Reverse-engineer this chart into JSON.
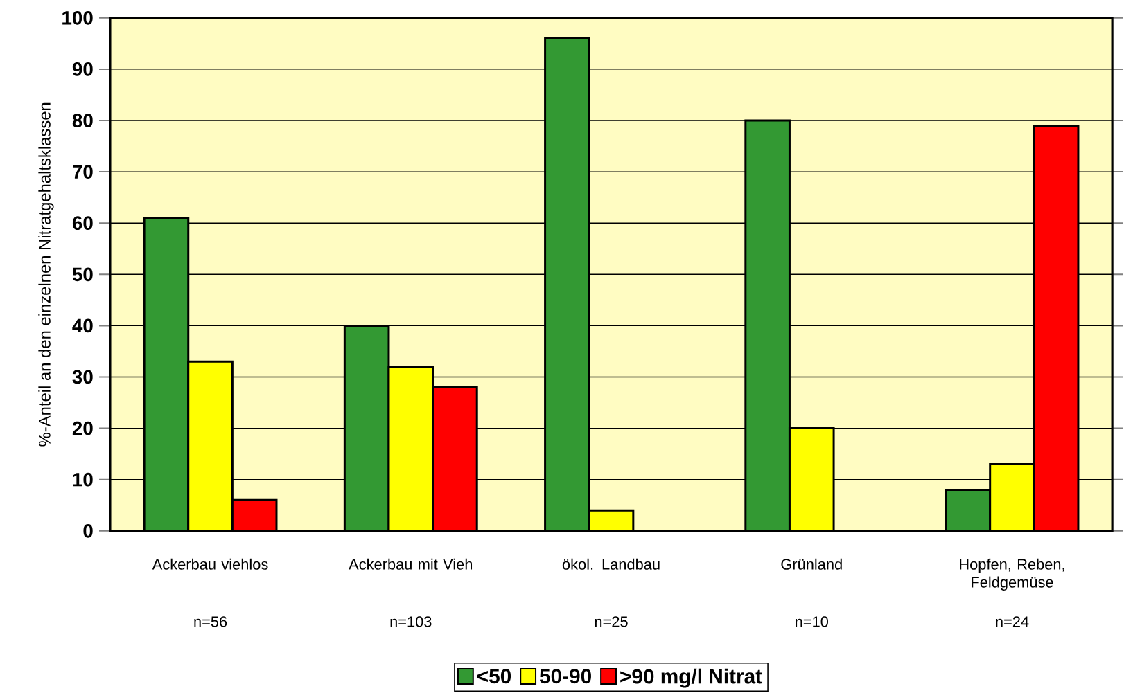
{
  "chart_data": {
    "type": "bar",
    "ylabel": "%-Anteil an den einzelnen Nitratgehaltsklassen",
    "categories": [
      "Ackerbau viehlos",
      "Ackerbau mit Vieh",
      "ökol. Landbau",
      "Grünland",
      "Hopfen, Reben, Feldgemüse"
    ],
    "series": [
      {
        "name": "<50",
        "color": "#339933",
        "values": [
          61,
          40,
          96,
          80,
          8
        ]
      },
      {
        "name": "50-90",
        "color": "#ffff00",
        "values": [
          33,
          32,
          4,
          20,
          13
        ]
      },
      {
        "name": ">90 mg/l Nitrat",
        "color": "#ff0000",
        "values": [
          6,
          28,
          null,
          null,
          79
        ]
      }
    ],
    "annotations": [
      "n=56",
      "n=103",
      "n=25",
      "n=10",
      "n=24"
    ],
    "ylim": [
      0,
      100
    ],
    "yticks": [
      0,
      10,
      20,
      30,
      40,
      50,
      60,
      70,
      80,
      90,
      100
    ],
    "grid": "y",
    "legend": "bottom"
  }
}
